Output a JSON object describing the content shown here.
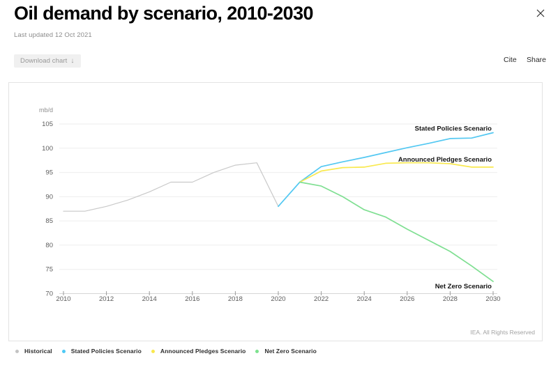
{
  "header": {
    "title": "Oil demand by scenario, 2010-2030",
    "subtitle": "Last updated 12 Oct 2021",
    "download_label": "Download chart",
    "download_arrow": "↓",
    "cite_label": "Cite",
    "share_label": "Share"
  },
  "chart": {
    "unit_label": "mb/d",
    "attribution": "IEA. All Rights Reserved"
  },
  "legend": [
    {
      "label": "Historical",
      "color": "#c3c3c3"
    },
    {
      "label": "Stated Policies Scenario",
      "color": "#4ec9f5"
    },
    {
      "label": "Announced Pledges Scenario",
      "color": "#f9e84e"
    },
    {
      "label": "Net Zero Scenario",
      "color": "#7de28e"
    }
  ],
  "chart_data": {
    "type": "line",
    "title": "Oil demand by scenario, 2010-2030",
    "xlabel": "",
    "ylabel": "mb/d",
    "xlim": [
      2010,
      2030
    ],
    "ylim": [
      70,
      105
    ],
    "xticks": [
      2010,
      2012,
      2014,
      2016,
      2018,
      2020,
      2022,
      2024,
      2026,
      2028,
      2030
    ],
    "yticks": [
      70,
      75,
      80,
      85,
      90,
      95,
      100,
      105
    ],
    "grid": "horizontal",
    "legend_position": "bottom",
    "series": [
      {
        "name": "Historical",
        "color": "#c9c9c9",
        "width": 1.2,
        "x": [
          2010,
          2011,
          2012,
          2013,
          2014,
          2015,
          2016,
          2017,
          2018,
          2019,
          2020
        ],
        "y": [
          87,
          87,
          88,
          89.3,
          91,
          93,
          93,
          95,
          96.5,
          97,
          88
        ]
      },
      {
        "name": "Stated Policies Scenario",
        "color": "#53c8f2",
        "width": 1.7,
        "x": [
          2020,
          2021,
          2022,
          2023,
          2024,
          2025,
          2026,
          2027,
          2028,
          2029,
          2030
        ],
        "y": [
          88,
          93,
          96.2,
          97.2,
          98.1,
          99.1,
          100.1,
          101,
          102,
          102.1,
          103.2
        ],
        "end_label": "Stated Policies Scenario",
        "label_dy": -3
      },
      {
        "name": "Announced Pledges Scenario",
        "color": "#f9e94f",
        "width": 1.7,
        "x": [
          2021,
          2022,
          2023,
          2024,
          2025,
          2026,
          2027,
          2028,
          2029,
          2030
        ],
        "y": [
          93,
          95.3,
          96,
          96.1,
          96.9,
          97,
          97,
          96.8,
          96.1,
          96.1
        ],
        "end_label": "Announced Pledges Scenario",
        "label_dy": -8
      },
      {
        "name": "Net Zero Scenario",
        "color": "#7fdf92",
        "width": 1.7,
        "x": [
          2021,
          2022,
          2023,
          2024,
          2025,
          2026,
          2027,
          2028,
          2029,
          2030
        ],
        "y": [
          93,
          92.2,
          90,
          87.3,
          85.8,
          83.3,
          81,
          78.7,
          75.7,
          72.5
        ],
        "end_label": "Net Zero Scenario",
        "label_dy": 10
      }
    ]
  }
}
